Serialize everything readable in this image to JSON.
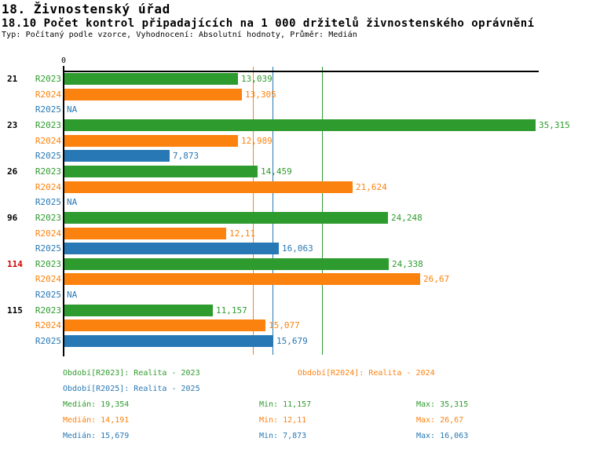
{
  "header": {
    "title": "18. Živnostenský úřad",
    "subtitle": "18.10 Počet kontrol připadajících na 1 000 držitelů živnostenského oprávnění",
    "meta": "Typ: Počítaný podle vzorce, Vyhodnocení: Absolutní hodnoty, Průměr: Medián"
  },
  "colors": {
    "series": {
      "R2023": "#2e9b2e",
      "R2024": "#fc820f",
      "R2025": "#2778b4"
    },
    "highlight_label": "#d40000",
    "axis": "#000000"
  },
  "chart_data": {
    "type": "bar",
    "orientation": "horizontal",
    "x_axis_zero_label": "0",
    "xlim": [
      0,
      35.6
    ],
    "series": [
      "R2023",
      "R2024",
      "R2025"
    ],
    "groups": [
      {
        "label": "21",
        "highlighted": false,
        "values": [
          13.039,
          13.305,
          null
        ],
        "value_labels": [
          "13,039",
          "13,305",
          "NA"
        ]
      },
      {
        "label": "23",
        "highlighted": false,
        "values": [
          35.315,
          12.989,
          7.873
        ],
        "value_labels": [
          "35,315",
          "12,989",
          "7,873"
        ]
      },
      {
        "label": "26",
        "highlighted": false,
        "values": [
          14.459,
          21.624,
          null
        ],
        "value_labels": [
          "14,459",
          "21,624",
          "NA"
        ]
      },
      {
        "label": "96",
        "highlighted": false,
        "values": [
          24.248,
          12.11,
          16.063
        ],
        "value_labels": [
          "24,248",
          "12,11",
          "16,063"
        ]
      },
      {
        "label": "114",
        "highlighted": true,
        "values": [
          24.338,
          26.67,
          null
        ],
        "value_labels": [
          "24,338",
          "26,67",
          "NA"
        ]
      },
      {
        "label": "115",
        "highlighted": false,
        "values": [
          11.157,
          15.077,
          15.679
        ],
        "value_labels": [
          "11,157",
          "15,077",
          "15,679"
        ]
      }
    ],
    "median_lines": [
      {
        "series": "R2023",
        "value": 19.354
      },
      {
        "series": "R2024",
        "value": 14.191
      },
      {
        "series": "R2025",
        "value": 15.679
      }
    ]
  },
  "legend": {
    "items": [
      {
        "series": "R2023",
        "label": "Období[R2023]: Realita - 2023"
      },
      {
        "series": "R2024",
        "label": "Období[R2024]: Realita - 2024"
      },
      {
        "series": "R2025",
        "label": "Období[R2025]: Realita - 2025"
      }
    ],
    "stats": [
      {
        "series": "R2023",
        "median": "Medián: 19,354",
        "min": "Min: 11,157",
        "max": "Max: 35,315"
      },
      {
        "series": "R2024",
        "median": "Medián: 14,191",
        "min": "Min: 12,11",
        "max": "Max: 26,67"
      },
      {
        "series": "R2025",
        "median": "Medián: 15,679",
        "min": "Min: 7,873",
        "max": "Max: 16,063"
      }
    ]
  }
}
